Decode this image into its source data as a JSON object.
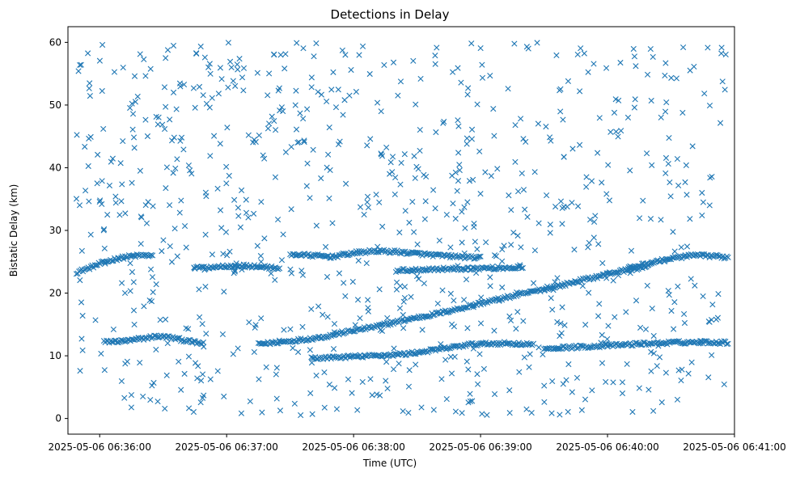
{
  "chart_data": {
    "type": "scatter",
    "title": "Detections in Delay",
    "xlabel": "Time (UTC)",
    "ylabel": "Bistatic Delay (km)",
    "marker": "x",
    "color": "#1f77b4",
    "grid": false,
    "legend": "none",
    "xlim_seconds_after_06_35_45": [
      0,
      315
    ],
    "ylim": [
      -2.5,
      62.5
    ],
    "x_ticks": [
      {
        "label": "2025-05-06 06:36:00",
        "value": 15
      },
      {
        "label": "2025-05-06 06:37:00",
        "value": 75
      },
      {
        "label": "2025-05-06 06:38:00",
        "value": 135
      },
      {
        "label": "2025-05-06 06:39:00",
        "value": 195
      },
      {
        "label": "2025-05-06 06:40:00",
        "value": 255
      },
      {
        "label": "2025-05-06 06:41:00",
        "value": 315
      }
    ],
    "y_ticks": [
      0,
      10,
      20,
      30,
      40,
      50,
      60
    ],
    "x_range_data": [
      "2025-05-06 06:35:49",
      "2025-05-06 06:40:56"
    ],
    "tracks": [
      {
        "x": [
          4,
          10,
          16,
          22,
          28,
          34,
          40
        ],
        "y": [
          23.3,
          24.0,
          24.8,
          25.4,
          25.8,
          26.0,
          26.0
        ]
      },
      {
        "x": [
          17,
          23,
          29,
          35,
          41,
          47,
          53,
          59,
          64
        ],
        "y": [
          12.2,
          12.3,
          12.4,
          12.7,
          13.1,
          13.0,
          12.6,
          12.2,
          11.9
        ]
      },
      {
        "x": [
          90,
          98,
          106,
          114,
          122,
          130,
          138,
          146,
          154,
          162,
          170,
          178,
          186,
          194,
          202,
          210,
          218,
          226,
          234,
          242,
          250,
          258,
          266,
          274
        ],
        "y": [
          11.9,
          12.1,
          12.4,
          12.7,
          13.1,
          13.7,
          14.2,
          14.7,
          15.3,
          15.9,
          16.4,
          17.0,
          17.6,
          18.3,
          18.9,
          19.5,
          20.1,
          20.7,
          21.3,
          22.0,
          22.6,
          23.3,
          23.8,
          24.2
        ]
      },
      {
        "x": [
          105,
          115,
          125,
          135,
          145,
          155,
          165,
          175,
          185,
          195
        ],
        "y": [
          26.2,
          26.0,
          25.8,
          26.4,
          26.7,
          26.6,
          26.3,
          26.0,
          25.8,
          25.6
        ]
      },
      {
        "x": [
          115,
          130,
          145,
          160,
          175,
          190,
          205,
          220
        ],
        "y": [
          9.6,
          9.8,
          10.0,
          10.3,
          11.0,
          11.8,
          12.0,
          11.8
        ]
      },
      {
        "x": [
          265,
          275,
          285,
          295,
          305,
          312
        ],
        "y": [
          24.0,
          24.8,
          25.5,
          26.0,
          25.9,
          25.7
        ]
      },
      {
        "x": [
          225,
          240,
          255,
          270,
          285,
          300,
          312
        ],
        "y": [
          11.2,
          11.4,
          11.6,
          11.9,
          12.1,
          12.2,
          12.1
        ]
      },
      {
        "x": [
          155,
          170,
          185,
          200,
          215
        ],
        "y": [
          23.6,
          23.8,
          23.9,
          24.0,
          24.1
        ]
      },
      {
        "x": [
          60,
          70,
          80,
          90,
          100
        ],
        "y": [
          24.0,
          24.2,
          24.4,
          24.2,
          24.0
        ]
      }
    ]
  }
}
